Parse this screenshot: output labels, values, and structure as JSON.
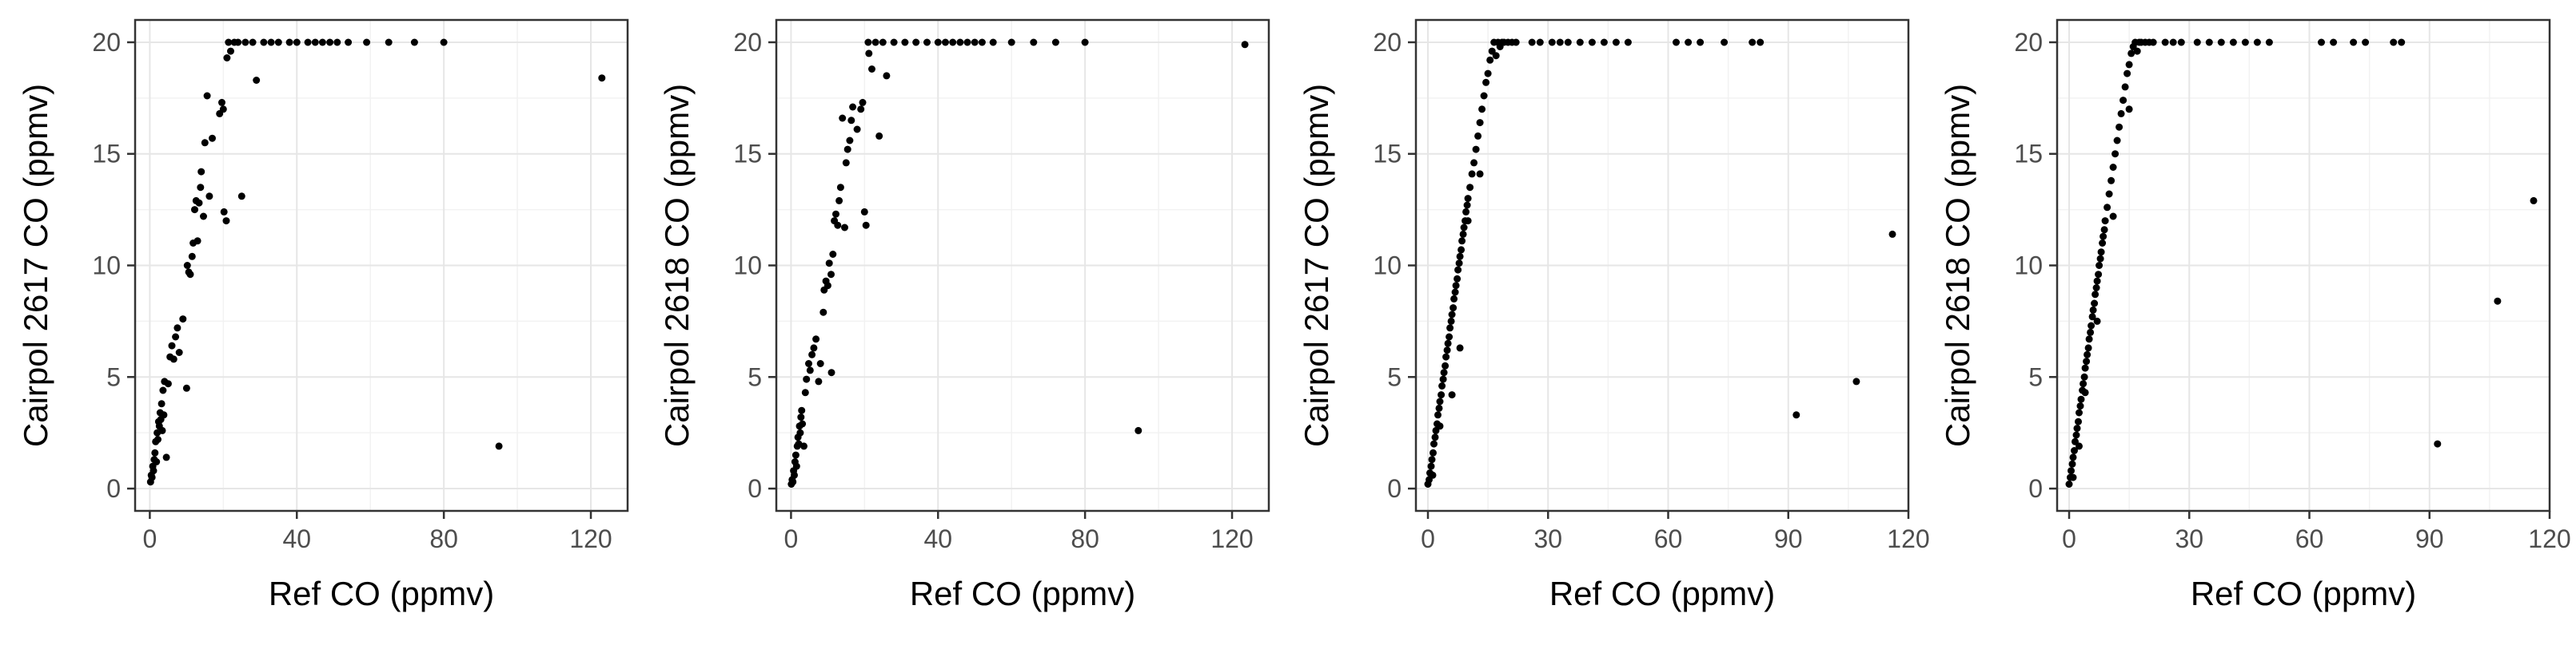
{
  "colors": {
    "background": "#ffffff",
    "panel_border": "#333333",
    "grid_major": "#e6e6e6",
    "grid_minor": "#f2f2f2",
    "tick_text": "#4d4d4d",
    "point": "#000000"
  },
  "chart_data": [
    {
      "type": "scatter",
      "xlabel": "Ref CO (ppmv)",
      "ylabel": "Cairpol 2617 CO (ppmv)",
      "xlim": [
        -4,
        130
      ],
      "ylim": [
        -1,
        21
      ],
      "xticks": [
        0,
        40,
        80,
        120
      ],
      "yticks": [
        0,
        5,
        10,
        15,
        20
      ],
      "tick_labels_x": [
        "0",
        "40",
        "80",
        "120"
      ],
      "tick_labels_y": [
        "0",
        "5",
        "10",
        "15",
        "20"
      ],
      "grid": true,
      "points": [
        [
          0.2,
          0.3
        ],
        [
          0.4,
          0.6
        ],
        [
          0.6,
          0.5
        ],
        [
          0.8,
          1.0
        ],
        [
          1.0,
          0.8
        ],
        [
          1.2,
          1.3
        ],
        [
          1.4,
          1.6
        ],
        [
          1.6,
          2.1
        ],
        [
          1.8,
          1.2
        ],
        [
          2.0,
          2.5
        ],
        [
          2.2,
          2.2
        ],
        [
          2.4,
          3.0
        ],
        [
          2.6,
          2.8
        ],
        [
          2.8,
          3.4
        ],
        [
          3.0,
          3.1
        ],
        [
          3.2,
          3.8
        ],
        [
          3.4,
          2.6
        ],
        [
          3.6,
          4.4
        ],
        [
          3.8,
          3.3
        ],
        [
          4.0,
          4.8
        ],
        [
          4.5,
          1.4
        ],
        [
          5.0,
          4.7
        ],
        [
          5.5,
          5.9
        ],
        [
          6.0,
          6.4
        ],
        [
          6.5,
          5.8
        ],
        [
          7.0,
          6.8
        ],
        [
          7.5,
          7.2
        ],
        [
          8.0,
          6.1
        ],
        [
          9.0,
          7.6
        ],
        [
          10.0,
          4.5
        ],
        [
          10.2,
          10.0
        ],
        [
          10.6,
          9.7
        ],
        [
          11.0,
          9.6
        ],
        [
          11.5,
          10.4
        ],
        [
          11.8,
          11.0
        ],
        [
          12.2,
          12.5
        ],
        [
          12.6,
          12.9
        ],
        [
          13.0,
          11.1
        ],
        [
          13.4,
          12.8
        ],
        [
          13.8,
          13.5
        ],
        [
          14.0,
          14.2
        ],
        [
          14.6,
          12.2
        ],
        [
          15.0,
          15.5
        ],
        [
          15.6,
          17.6
        ],
        [
          16.2,
          13.1
        ],
        [
          17.0,
          15.7
        ],
        [
          19.0,
          16.8
        ],
        [
          19.6,
          17.3
        ],
        [
          20.0,
          17.0
        ],
        [
          20.2,
          12.4
        ],
        [
          20.8,
          12.0
        ],
        [
          21.0,
          19.3
        ],
        [
          21.4,
          20.0
        ],
        [
          22.0,
          19.6
        ],
        [
          23.0,
          20.0
        ],
        [
          24.0,
          20.0
        ],
        [
          25.0,
          13.1
        ],
        [
          26.0,
          20.0
        ],
        [
          28.0,
          20.0
        ],
        [
          29.0,
          18.3
        ],
        [
          31.0,
          20.0
        ],
        [
          33.0,
          20.0
        ],
        [
          35.0,
          20.0
        ],
        [
          38.0,
          20.0
        ],
        [
          40.0,
          20.0
        ],
        [
          43.0,
          20.0
        ],
        [
          45.0,
          20.0
        ],
        [
          47.0,
          20.0
        ],
        [
          49.0,
          20.0
        ],
        [
          51.0,
          20.0
        ],
        [
          54.0,
          20.0
        ],
        [
          59.0,
          20.0
        ],
        [
          65.0,
          20.0
        ],
        [
          72.0,
          20.0
        ],
        [
          80.0,
          20.0
        ],
        [
          95.0,
          1.9
        ],
        [
          123.0,
          18.4
        ]
      ]
    },
    {
      "type": "scatter",
      "xlabel": "Ref CO (ppmv)",
      "ylabel": "Cairpol 2618 CO (ppmv)",
      "xlim": [
        -4,
        130
      ],
      "ylim": [
        -1,
        21
      ],
      "xticks": [
        0,
        40,
        80,
        120
      ],
      "yticks": [
        0,
        5,
        10,
        15,
        20
      ],
      "tick_labels_x": [
        "0",
        "40",
        "80",
        "120"
      ],
      "tick_labels_y": [
        "0",
        "5",
        "10",
        "15",
        "20"
      ],
      "grid": true,
      "points": [
        [
          0.1,
          0.2
        ],
        [
          0.3,
          0.4
        ],
        [
          0.5,
          0.3
        ],
        [
          0.7,
          0.8
        ],
        [
          0.9,
          0.6
        ],
        [
          1.1,
          1.2
        ],
        [
          1.3,
          1.5
        ],
        [
          1.5,
          1.0
        ],
        [
          1.7,
          1.9
        ],
        [
          1.9,
          2.3
        ],
        [
          2.1,
          2.0
        ],
        [
          2.3,
          2.8
        ],
        [
          2.5,
          2.5
        ],
        [
          2.7,
          3.2
        ],
        [
          2.9,
          3.5
        ],
        [
          3.1,
          2.9
        ],
        [
          3.5,
          1.9
        ],
        [
          3.9,
          4.3
        ],
        [
          4.2,
          4.9
        ],
        [
          4.8,
          5.6
        ],
        [
          5.2,
          5.3
        ],
        [
          5.7,
          6.0
        ],
        [
          6.2,
          6.3
        ],
        [
          6.8,
          6.7
        ],
        [
          7.5,
          4.8
        ],
        [
          8.0,
          5.6
        ],
        [
          8.8,
          7.9
        ],
        [
          9.0,
          8.9
        ],
        [
          9.5,
          9.3
        ],
        [
          10.0,
          9.1
        ],
        [
          10.4,
          10.1
        ],
        [
          10.9,
          9.6
        ],
        [
          11.0,
          5.2
        ],
        [
          11.4,
          10.5
        ],
        [
          11.8,
          12.0
        ],
        [
          12.2,
          12.3
        ],
        [
          12.7,
          11.8
        ],
        [
          13.1,
          12.9
        ],
        [
          13.5,
          13.5
        ],
        [
          14.0,
          16.6
        ],
        [
          14.6,
          11.7
        ],
        [
          15.0,
          14.6
        ],
        [
          15.4,
          15.2
        ],
        [
          16.0,
          15.6
        ],
        [
          16.4,
          16.5
        ],
        [
          16.8,
          17.1
        ],
        [
          18.0,
          16.1
        ],
        [
          19.0,
          17.0
        ],
        [
          19.5,
          17.3
        ],
        [
          20.0,
          12.4
        ],
        [
          20.4,
          11.8
        ],
        [
          21.0,
          20.0
        ],
        [
          21.2,
          19.5
        ],
        [
          22.0,
          18.8
        ],
        [
          23.0,
          20.0
        ],
        [
          24.0,
          15.8
        ],
        [
          25.0,
          20.0
        ],
        [
          26.0,
          18.5
        ],
        [
          28.0,
          20.0
        ],
        [
          31.0,
          20.0
        ],
        [
          34.0,
          20.0
        ],
        [
          37.0,
          20.0
        ],
        [
          40.0,
          20.0
        ],
        [
          42.0,
          20.0
        ],
        [
          44.0,
          20.0
        ],
        [
          46.0,
          20.0
        ],
        [
          48.0,
          20.0
        ],
        [
          50.0,
          20.0
        ],
        [
          52.0,
          20.0
        ],
        [
          55.0,
          20.0
        ],
        [
          60.0,
          20.0
        ],
        [
          66.0,
          20.0
        ],
        [
          72.0,
          20.0
        ],
        [
          80.0,
          20.0
        ],
        [
          94.5,
          2.6
        ],
        [
          123.5,
          19.9
        ]
      ]
    },
    {
      "type": "scatter",
      "xlabel": "Ref CO (ppmv)",
      "ylabel": "Cairpol 2617 CO (ppmv)",
      "xlim": [
        -3,
        120
      ],
      "ylim": [
        -1,
        21
      ],
      "xticks": [
        0,
        30,
        60,
        90,
        120
      ],
      "yticks": [
        0,
        5,
        10,
        15,
        20
      ],
      "tick_labels_x": [
        "0",
        "30",
        "60",
        "90",
        "120"
      ],
      "tick_labels_y": [
        "0",
        "5",
        "10",
        "15",
        "20"
      ],
      "grid": true,
      "points": [
        [
          0.0,
          0.2
        ],
        [
          0.3,
          0.4
        ],
        [
          0.5,
          0.7
        ],
        [
          0.8,
          1.0
        ],
        [
          1.0,
          1.3
        ],
        [
          1.3,
          1.6
        ],
        [
          1.5,
          2.0
        ],
        [
          1.8,
          2.3
        ],
        [
          2.0,
          2.6
        ],
        [
          2.3,
          2.9
        ],
        [
          2.5,
          3.3
        ],
        [
          2.8,
          3.6
        ],
        [
          3.0,
          3.9
        ],
        [
          3.3,
          4.2
        ],
        [
          3.5,
          4.6
        ],
        [
          3.8,
          4.9
        ],
        [
          4.0,
          5.2
        ],
        [
          4.3,
          5.5
        ],
        [
          4.5,
          5.9
        ],
        [
          4.8,
          6.2
        ],
        [
          5.0,
          6.5
        ],
        [
          5.3,
          6.8
        ],
        [
          5.5,
          7.2
        ],
        [
          5.8,
          7.5
        ],
        [
          6.0,
          7.8
        ],
        [
          6.3,
          8.1
        ],
        [
          6.5,
          8.5
        ],
        [
          6.8,
          8.8
        ],
        [
          7.0,
          9.1
        ],
        [
          7.3,
          9.4
        ],
        [
          7.5,
          9.8
        ],
        [
          7.8,
          10.1
        ],
        [
          8.0,
          10.4
        ],
        [
          8.3,
          10.7
        ],
        [
          8.5,
          11.1
        ],
        [
          8.8,
          11.4
        ],
        [
          9.0,
          11.7
        ],
        [
          9.3,
          12.0
        ],
        [
          9.5,
          12.4
        ],
        [
          9.8,
          12.7
        ],
        [
          10.0,
          13.0
        ],
        [
          10.5,
          13.5
        ],
        [
          11.0,
          14.1
        ],
        [
          11.5,
          14.6
        ],
        [
          12.0,
          15.2
        ],
        [
          12.5,
          15.8
        ],
        [
          13.0,
          16.4
        ],
        [
          13.5,
          17.0
        ],
        [
          14.0,
          17.6
        ],
        [
          14.5,
          18.2
        ],
        [
          15.0,
          18.6
        ],
        [
          15.5,
          19.2
        ],
        [
          16.0,
          19.6
        ],
        [
          16.5,
          20.0
        ],
        [
          17.0,
          19.4
        ],
        [
          17.5,
          20.0
        ],
        [
          18.0,
          19.8
        ],
        [
          18.5,
          20.0
        ],
        [
          19.0,
          20.0
        ],
        [
          20.0,
          20.0
        ],
        [
          21.0,
          20.0
        ],
        [
          22.0,
          20.0
        ],
        [
          6.0,
          4.2
        ],
        [
          8.0,
          6.3
        ],
        [
          10.0,
          12.0
        ],
        [
          13.0,
          14.1
        ],
        [
          1.2,
          0.6
        ],
        [
          3.0,
          2.8
        ],
        [
          26.0,
          20.0
        ],
        [
          28.0,
          20.0
        ],
        [
          31.0,
          20.0
        ],
        [
          33.0,
          20.0
        ],
        [
          35.0,
          20.0
        ],
        [
          38.0,
          20.0
        ],
        [
          41.0,
          20.0
        ],
        [
          44.0,
          20.0
        ],
        [
          47.0,
          20.0
        ],
        [
          50.0,
          20.0
        ],
        [
          62.0,
          20.0
        ],
        [
          65.0,
          20.0
        ],
        [
          68.0,
          20.0
        ],
        [
          74.0,
          20.0
        ],
        [
          81.0,
          20.0
        ],
        [
          83.0,
          20.0
        ],
        [
          92.0,
          3.3
        ],
        [
          107.0,
          4.8
        ],
        [
          116.0,
          11.4
        ]
      ]
    },
    {
      "type": "scatter",
      "xlabel": "Ref CO (ppmv)",
      "ylabel": "Cairpol 2618 CO (ppmv)",
      "xlim": [
        -3,
        120
      ],
      "ylim": [
        -1,
        21
      ],
      "xticks": [
        0,
        30,
        60,
        90,
        120
      ],
      "yticks": [
        0,
        5,
        10,
        15,
        20
      ],
      "tick_labels_x": [
        "0",
        "30",
        "60",
        "90",
        "120"
      ],
      "tick_labels_y": [
        "0",
        "5",
        "10",
        "15",
        "20"
      ],
      "grid": true,
      "points": [
        [
          0.0,
          0.2
        ],
        [
          0.3,
          0.5
        ],
        [
          0.5,
          0.8
        ],
        [
          0.8,
          1.1
        ],
        [
          1.0,
          1.4
        ],
        [
          1.3,
          1.7
        ],
        [
          1.5,
          2.1
        ],
        [
          1.8,
          2.4
        ],
        [
          2.0,
          2.7
        ],
        [
          2.3,
          3.0
        ],
        [
          2.5,
          3.4
        ],
        [
          2.8,
          3.7
        ],
        [
          3.0,
          4.0
        ],
        [
          3.3,
          4.4
        ],
        [
          3.5,
          4.7
        ],
        [
          3.8,
          5.0
        ],
        [
          4.0,
          5.4
        ],
        [
          4.3,
          5.7
        ],
        [
          4.5,
          6.0
        ],
        [
          4.8,
          6.3
        ],
        [
          5.0,
          6.7
        ],
        [
          5.3,
          7.0
        ],
        [
          5.5,
          7.3
        ],
        [
          5.8,
          7.7
        ],
        [
          6.0,
          8.0
        ],
        [
          6.3,
          8.3
        ],
        [
          6.5,
          8.7
        ],
        [
          6.8,
          9.0
        ],
        [
          7.0,
          9.3
        ],
        [
          7.3,
          9.6
        ],
        [
          7.5,
          10.0
        ],
        [
          7.8,
          10.3
        ],
        [
          8.0,
          10.6
        ],
        [
          8.3,
          11.0
        ],
        [
          8.5,
          11.3
        ],
        [
          8.8,
          11.6
        ],
        [
          9.0,
          12.0
        ],
        [
          9.5,
          12.6
        ],
        [
          10.0,
          13.2
        ],
        [
          10.5,
          13.8
        ],
        [
          11.0,
          14.4
        ],
        [
          11.5,
          15.0
        ],
        [
          12.0,
          15.6
        ],
        [
          12.5,
          16.2
        ],
        [
          13.0,
          16.8
        ],
        [
          13.5,
          17.4
        ],
        [
          14.0,
          18.0
        ],
        [
          14.5,
          18.6
        ],
        [
          15.0,
          19.0
        ],
        [
          15.5,
          19.5
        ],
        [
          16.0,
          19.8
        ],
        [
          16.5,
          20.0
        ],
        [
          17.0,
          19.6
        ],
        [
          17.5,
          20.0
        ],
        [
          18.0,
          20.0
        ],
        [
          19.0,
          20.0
        ],
        [
          20.0,
          20.0
        ],
        [
          21.0,
          20.0
        ],
        [
          4.0,
          4.3
        ],
        [
          2.5,
          1.9
        ],
        [
          7.0,
          7.5
        ],
        [
          11.0,
          12.2
        ],
        [
          15.0,
          17.0
        ],
        [
          1.0,
          0.5
        ],
        [
          24.0,
          20.0
        ],
        [
          26.0,
          20.0
        ],
        [
          28.0,
          20.0
        ],
        [
          32.0,
          20.0
        ],
        [
          35.0,
          20.0
        ],
        [
          38.0,
          20.0
        ],
        [
          41.0,
          20.0
        ],
        [
          44.0,
          20.0
        ],
        [
          47.0,
          20.0
        ],
        [
          50.0,
          20.0
        ],
        [
          63.0,
          20.0
        ],
        [
          66.0,
          20.0
        ],
        [
          71.0,
          20.0
        ],
        [
          74.0,
          20.0
        ],
        [
          81.0,
          20.0
        ],
        [
          83.0,
          20.0
        ],
        [
          92.0,
          2.0
        ],
        [
          107.0,
          8.4
        ],
        [
          116.0,
          12.9
        ]
      ]
    }
  ]
}
